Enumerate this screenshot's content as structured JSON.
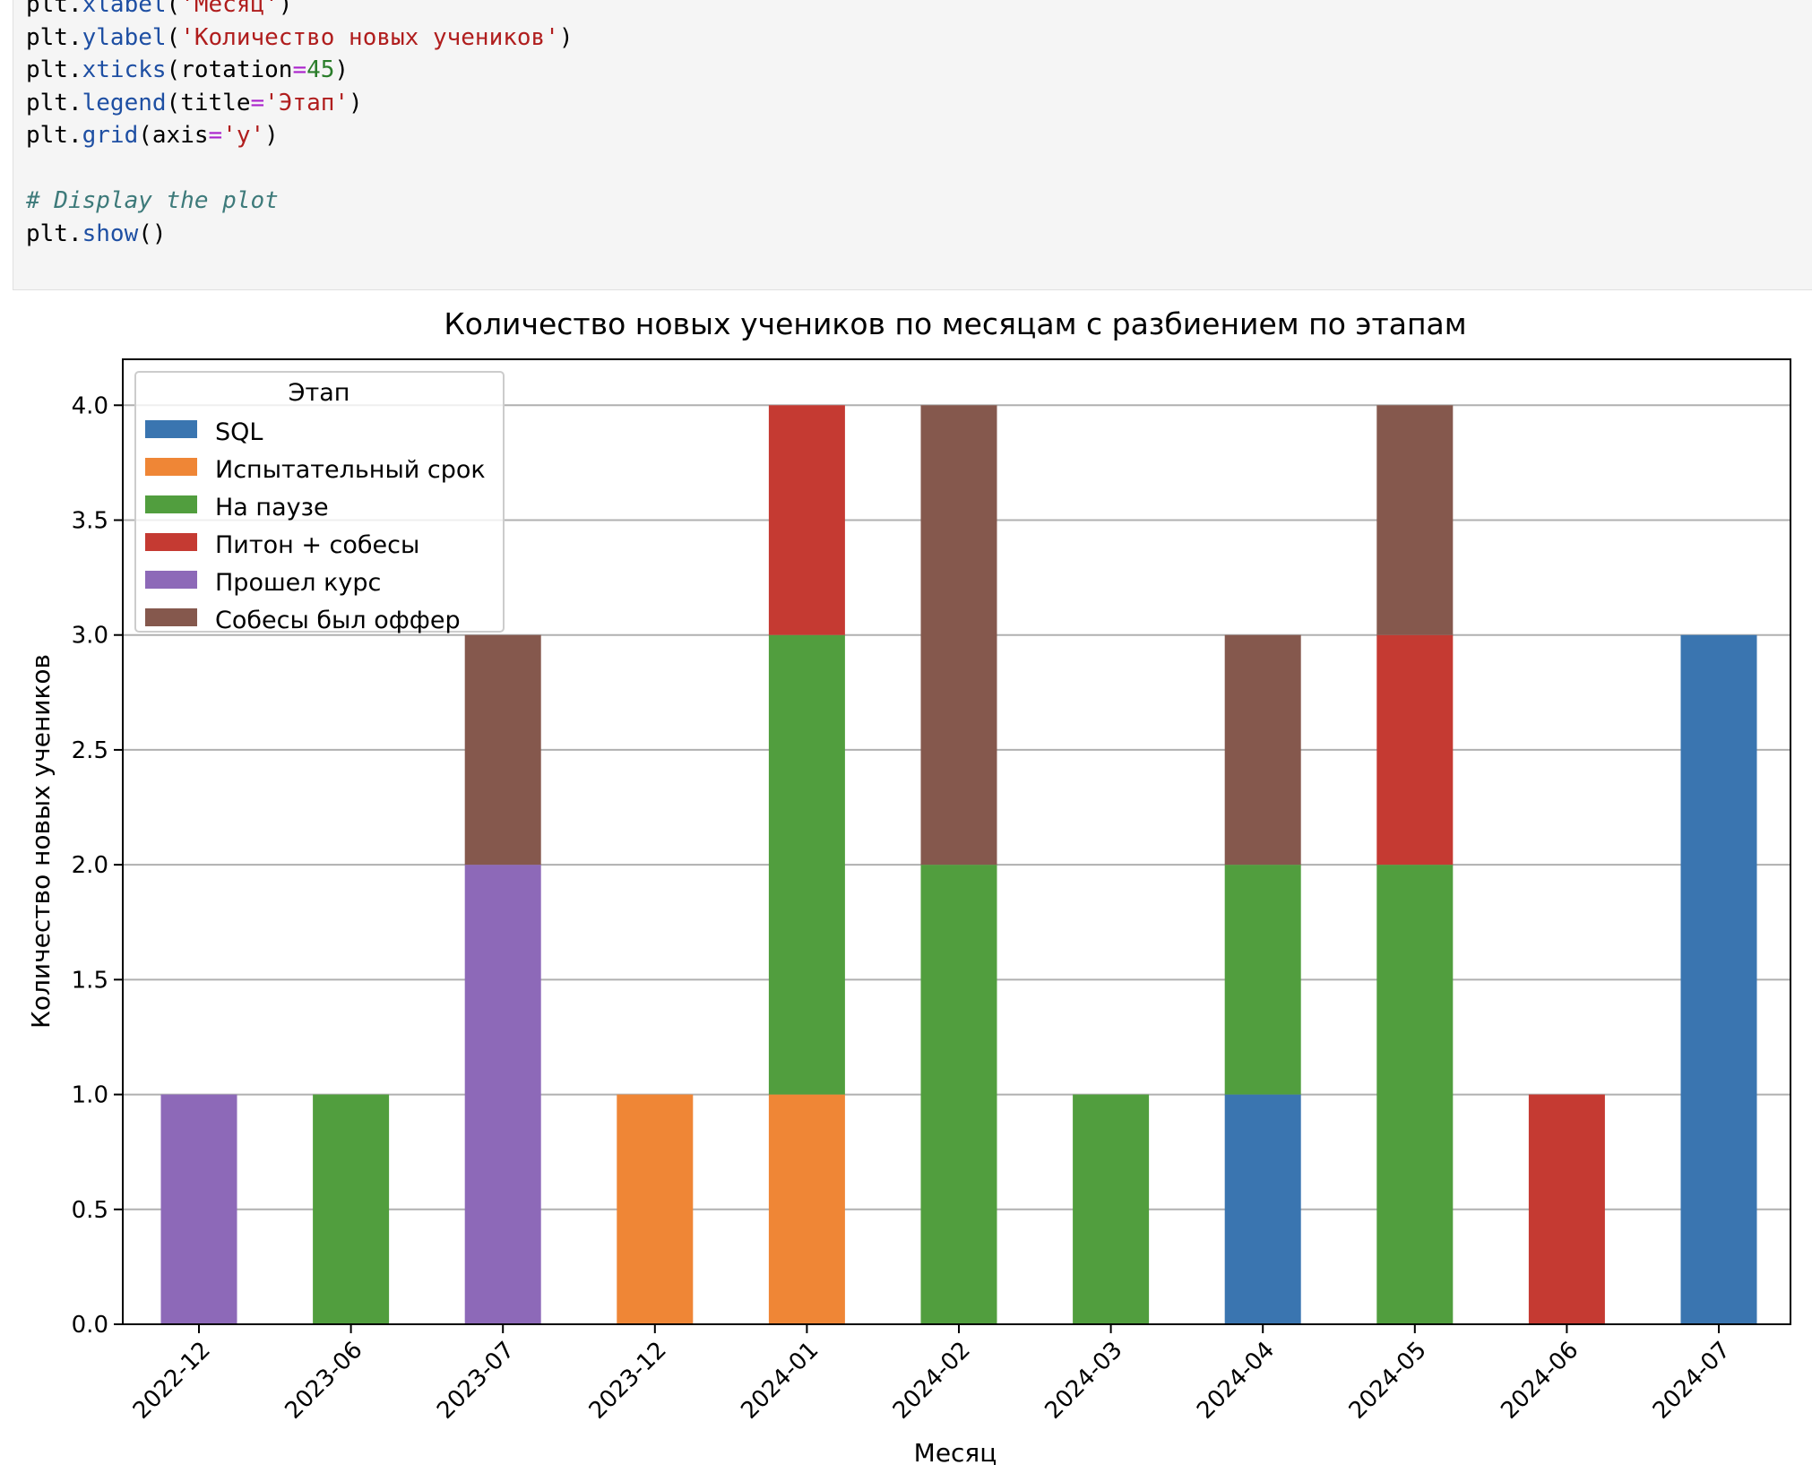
{
  "code": {
    "lines": [
      {
        "tokens": [
          {
            "t": "plt.",
            "c": ""
          },
          {
            "t": "xlabel",
            "c": "kw"
          },
          {
            "t": "(",
            "c": ""
          },
          {
            "t": "'Месяц'",
            "c": "str"
          },
          {
            "t": ")",
            "c": ""
          }
        ]
      },
      {
        "tokens": [
          {
            "t": "plt.",
            "c": ""
          },
          {
            "t": "ylabel",
            "c": "kw"
          },
          {
            "t": "(",
            "c": ""
          },
          {
            "t": "'Количество новых учеников'",
            "c": "str"
          },
          {
            "t": ")",
            "c": ""
          }
        ]
      },
      {
        "tokens": [
          {
            "t": "plt.",
            "c": ""
          },
          {
            "t": "xticks",
            "c": "kw"
          },
          {
            "t": "(rotation",
            "c": ""
          },
          {
            "t": "=",
            "c": "op"
          },
          {
            "t": "45",
            "c": "num"
          },
          {
            "t": ")",
            "c": ""
          }
        ]
      },
      {
        "tokens": [
          {
            "t": "plt.",
            "c": ""
          },
          {
            "t": "legend",
            "c": "kw"
          },
          {
            "t": "(title",
            "c": ""
          },
          {
            "t": "=",
            "c": "op"
          },
          {
            "t": "'Этап'",
            "c": "str"
          },
          {
            "t": ")",
            "c": ""
          }
        ]
      },
      {
        "tokens": [
          {
            "t": "plt.",
            "c": ""
          },
          {
            "t": "grid",
            "c": "kw"
          },
          {
            "t": "(axis",
            "c": ""
          },
          {
            "t": "=",
            "c": "op"
          },
          {
            "t": "'y'",
            "c": "str"
          },
          {
            "t": ")",
            "c": ""
          }
        ]
      },
      {
        "tokens": []
      },
      {
        "tokens": [
          {
            "t": "# Display the plot",
            "c": "cm"
          }
        ]
      },
      {
        "tokens": [
          {
            "t": "plt.",
            "c": ""
          },
          {
            "t": "show",
            "c": "kw"
          },
          {
            "t": "()",
            "c": ""
          }
        ]
      }
    ]
  },
  "chart_data": {
    "type": "bar",
    "stacked": true,
    "title": "Количество новых учеников по месяцам с разбиением по этапам",
    "xlabel": "Месяц",
    "ylabel": "Количество новых учеников",
    "ylim": [
      0,
      4.2
    ],
    "yticks": [
      "0.0",
      "0.5",
      "1.0",
      "1.5",
      "2.0",
      "2.5",
      "3.0",
      "3.5",
      "4.0"
    ],
    "grid": "y",
    "legend_title": "Этап",
    "legend_position": "top-left",
    "categories": [
      "2022-12",
      "2023-06",
      "2023-07",
      "2023-12",
      "2024-01",
      "2024-02",
      "2024-03",
      "2024-04",
      "2024-05",
      "2024-06",
      "2024-07"
    ],
    "series": [
      {
        "name": "SQL",
        "color": "#3a75b0",
        "values": [
          0,
          0,
          0,
          0,
          0,
          0,
          0,
          1,
          0,
          0,
          3
        ]
      },
      {
        "name": "Испытательный срок",
        "color": "#ef8636",
        "values": [
          0,
          0,
          0,
          1,
          1,
          0,
          0,
          0,
          0,
          0,
          0
        ]
      },
      {
        "name": "На паузе",
        "color": "#519e3e",
        "values": [
          0,
          1,
          0,
          0,
          2,
          2,
          1,
          1,
          2,
          0,
          0
        ]
      },
      {
        "name": "Питон + собесы",
        "color": "#c53a32",
        "values": [
          0,
          0,
          0,
          0,
          1,
          0,
          0,
          0,
          1,
          1,
          0
        ]
      },
      {
        "name": "Прошел курс",
        "color": "#8d69b8",
        "values": [
          1,
          0,
          2,
          0,
          0,
          0,
          0,
          0,
          0,
          0,
          0
        ]
      },
      {
        "name": "Собесы был оффер",
        "color": "#85584d",
        "values": [
          0,
          0,
          1,
          0,
          0,
          2,
          0,
          1,
          1,
          0,
          0
        ]
      }
    ]
  }
}
